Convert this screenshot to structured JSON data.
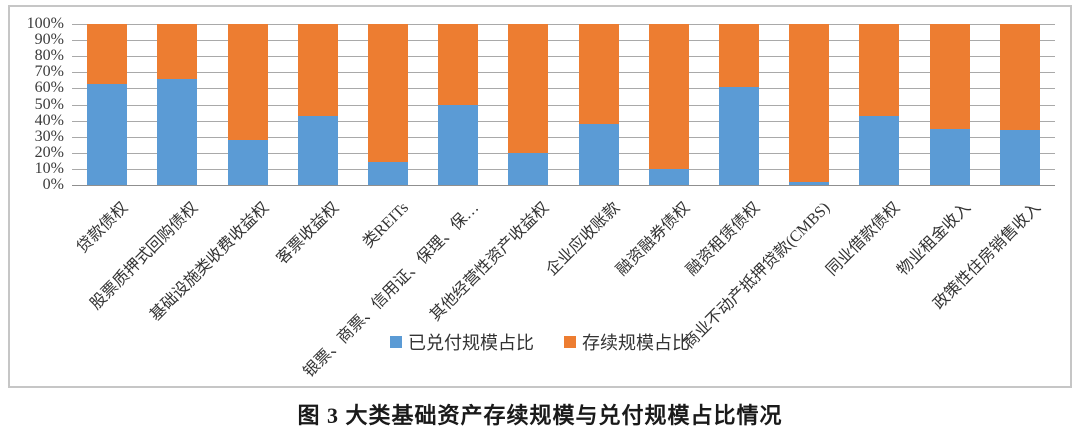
{
  "caption": "图 3  大类基础资产存续规模与兑付规模占比情况",
  "colors": {
    "paid_blue": "#5b9bd5",
    "outstanding_orange": "#ed7d31",
    "gridline": "#a9a9a9",
    "frame_border": "#c6c6c6"
  },
  "legend": {
    "items": [
      {
        "label": "已兑付规模占比",
        "color": "#5b9bd5"
      },
      {
        "label": "存续规模占比",
        "color": "#ed7d31"
      }
    ]
  },
  "chart_data": {
    "type": "bar",
    "stacked": true,
    "stack_total": 100,
    "unit": "%",
    "grid": true,
    "legend_position": "bottom",
    "ylim": [
      0,
      100
    ],
    "y_ticks": [
      "100%",
      "90%",
      "80%",
      "70%",
      "60%",
      "50%",
      "40%",
      "30%",
      "20%",
      "10%",
      "0%"
    ],
    "categories": [
      "贷款债权",
      "股票质押式回购债权",
      "基础设施类收费收益权",
      "客票收益权",
      "类REITs",
      "银票、商票、信用证、保理、保…",
      "其他经营性资产收益权",
      "企业应收账款",
      "融资融券债权",
      "融资租赁债权",
      "商业不动产抵押贷款(CMBS)",
      "同业借款债权",
      "物业租金收入",
      "政策性住房销售收入"
    ],
    "series": [
      {
        "name": "已兑付规模占比",
        "color": "#5b9bd5",
        "values": [
          63,
          66,
          28,
          43,
          14,
          50,
          20,
          38,
          10,
          61,
          2,
          43,
          35,
          34
        ]
      },
      {
        "name": "存续规模占比",
        "color": "#ed7d31",
        "values": [
          37,
          34,
          72,
          57,
          86,
          50,
          80,
          62,
          90,
          39,
          98,
          57,
          65,
          66
        ]
      }
    ],
    "title": "图 3  大类基础资产存续规模与兑付规模占比情况"
  }
}
